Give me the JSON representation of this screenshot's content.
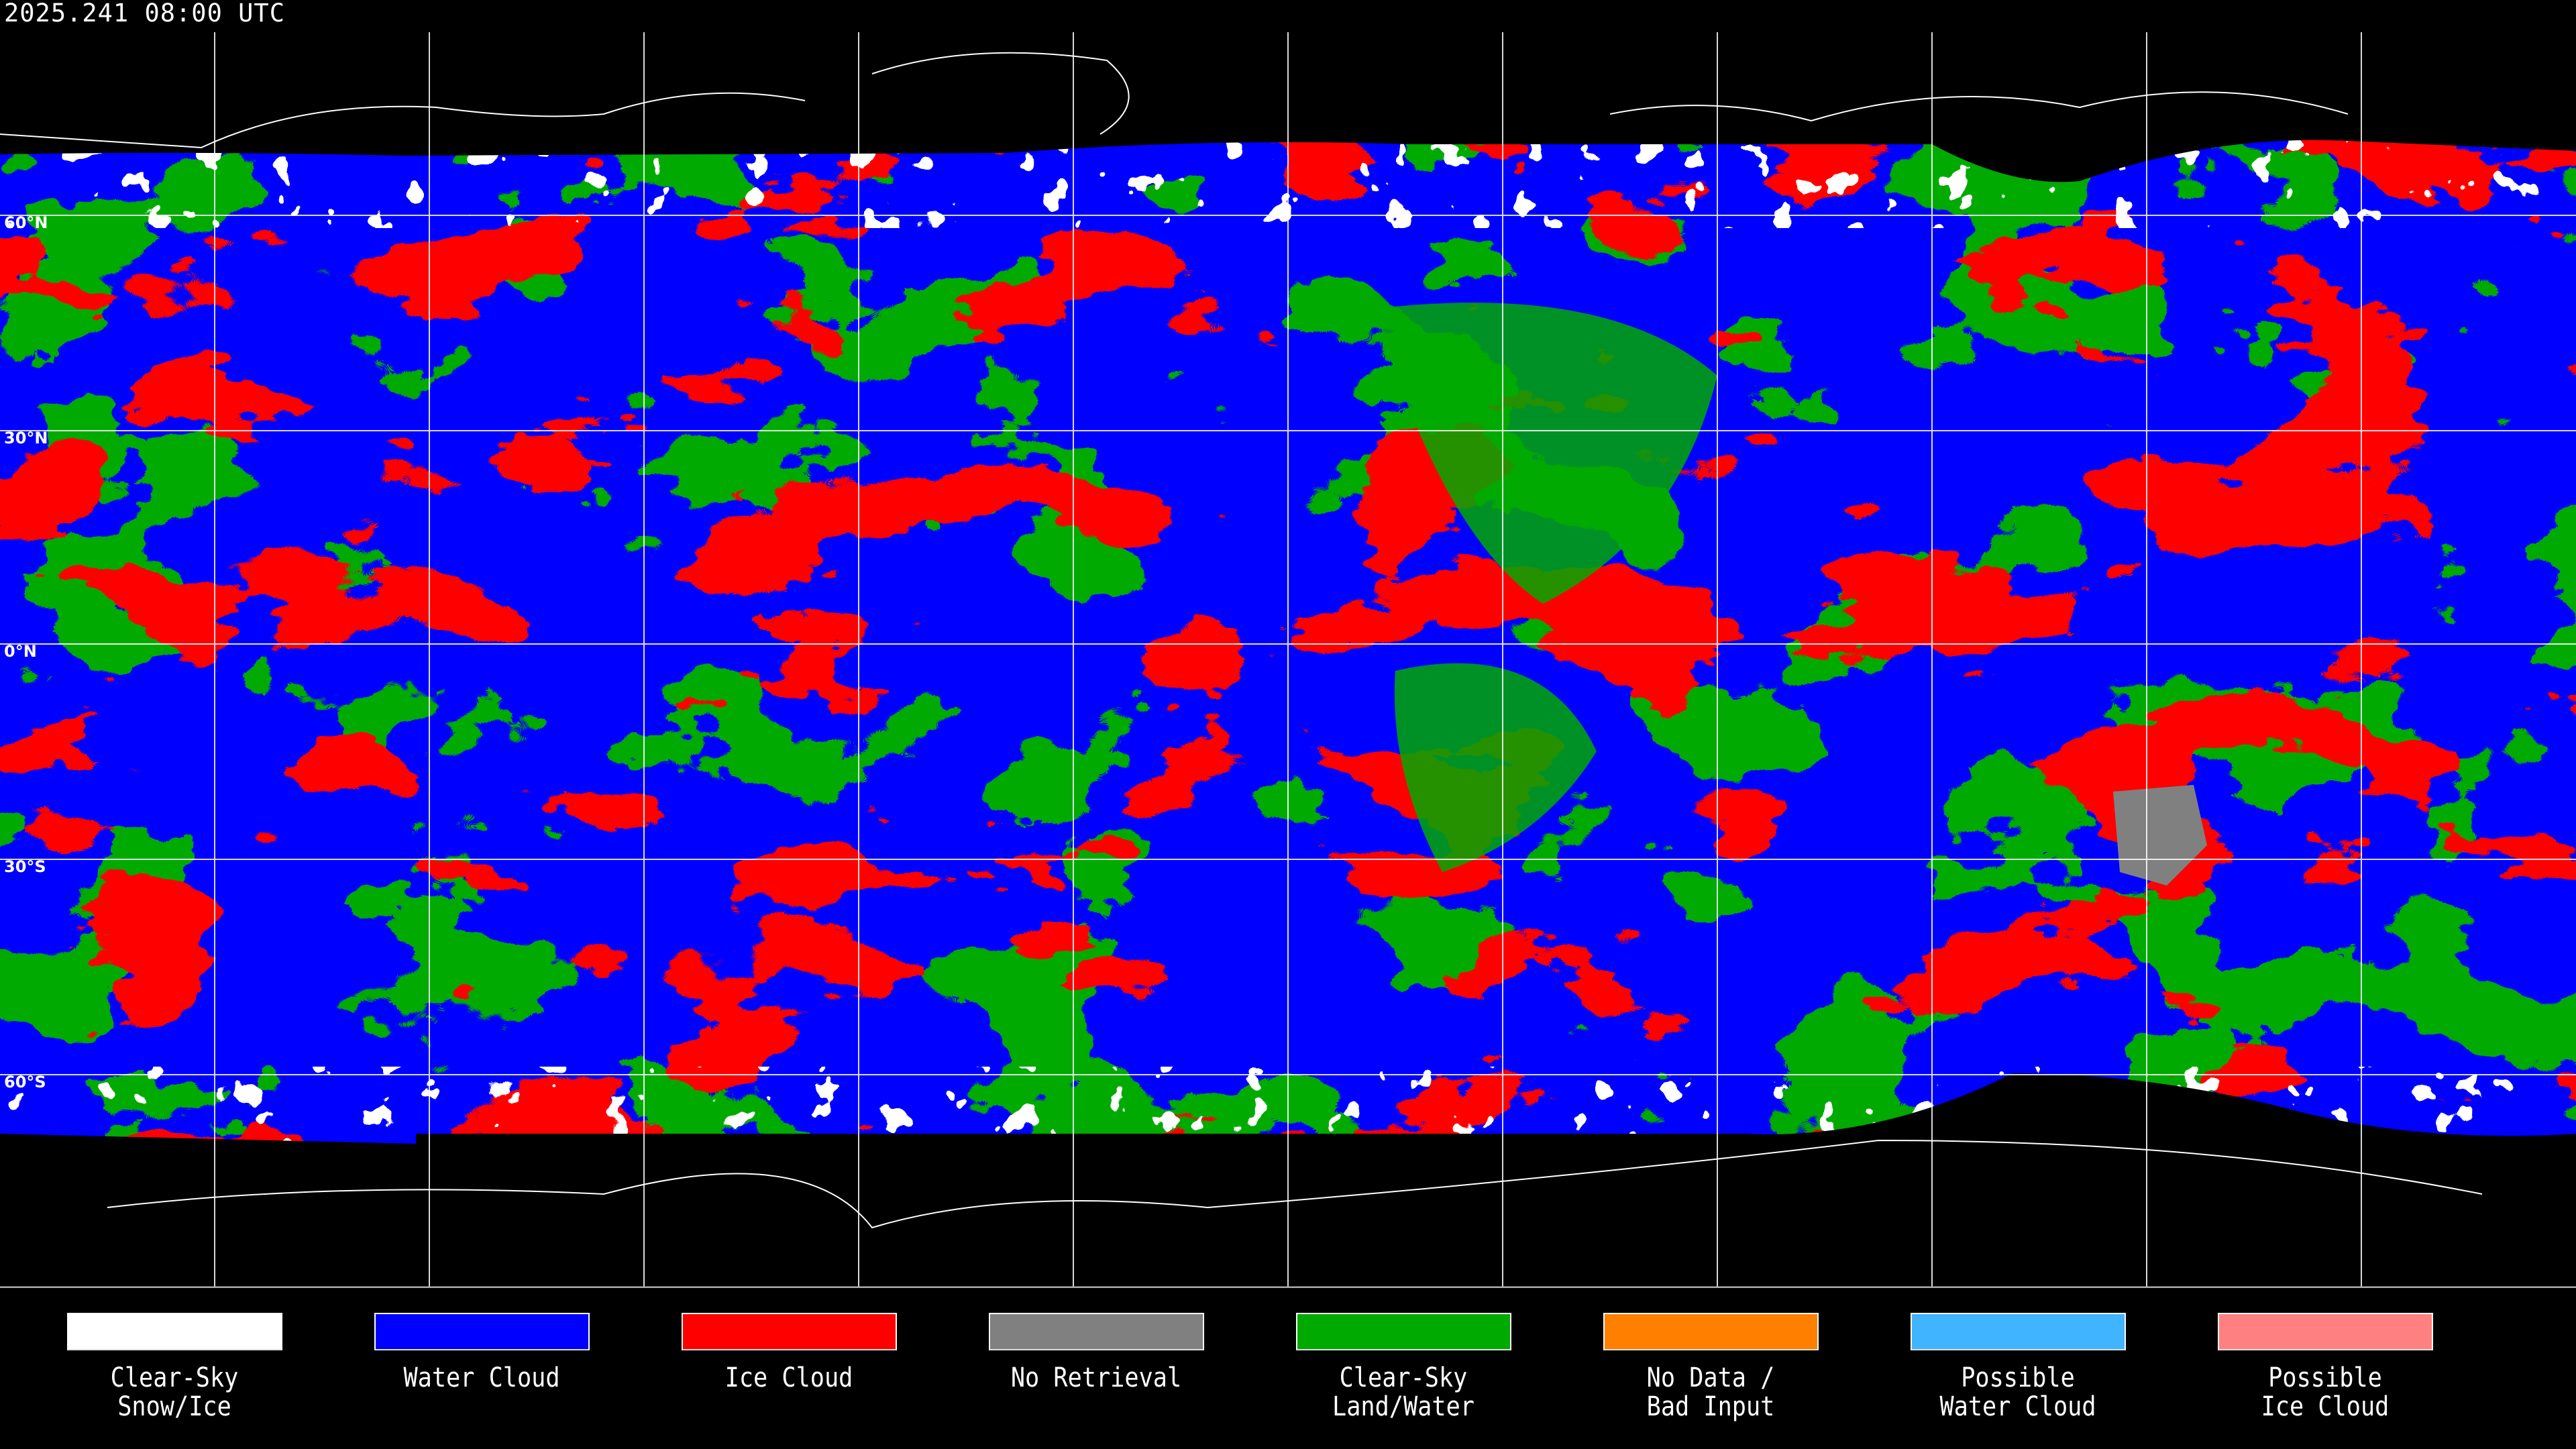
{
  "timestamp": "2025.241 08:00 UTC",
  "latitude_labels": [
    "60°N",
    "30°N",
    "0°N",
    "30°S",
    "60°S"
  ],
  "map_colors": {
    "clear_sky_snow_ice": "#ffffff",
    "water_cloud": "#0000ff",
    "ice_cloud": "#ff0000",
    "no_retrieval": "#808080",
    "clear_sky_land_water": "#00aa00",
    "background": "#000000",
    "gridlines": "#ffffff"
  },
  "legend": [
    {
      "line1": "Clear-Sky",
      "line2": "Snow/Ice",
      "color": "#ffffff"
    },
    {
      "line1": "Water Cloud",
      "line2": "",
      "color": "#0000ff"
    },
    {
      "line1": "Ice Cloud",
      "line2": "",
      "color": "#ff0000"
    },
    {
      "line1": "No Retrieval",
      "line2": "",
      "color": "#808080"
    },
    {
      "line1": "Clear-Sky",
      "line2": "Land/Water",
      "color": "#00aa00"
    },
    {
      "line1": "No Data /",
      "line2": "Bad Input",
      "color": "#ff8000"
    },
    {
      "line1": "Possible",
      "line2": "Water Cloud",
      "color": "#40b4ff"
    },
    {
      "line1": "Possible",
      "line2": "Ice Cloud",
      "color": "#ff8080"
    }
  ]
}
